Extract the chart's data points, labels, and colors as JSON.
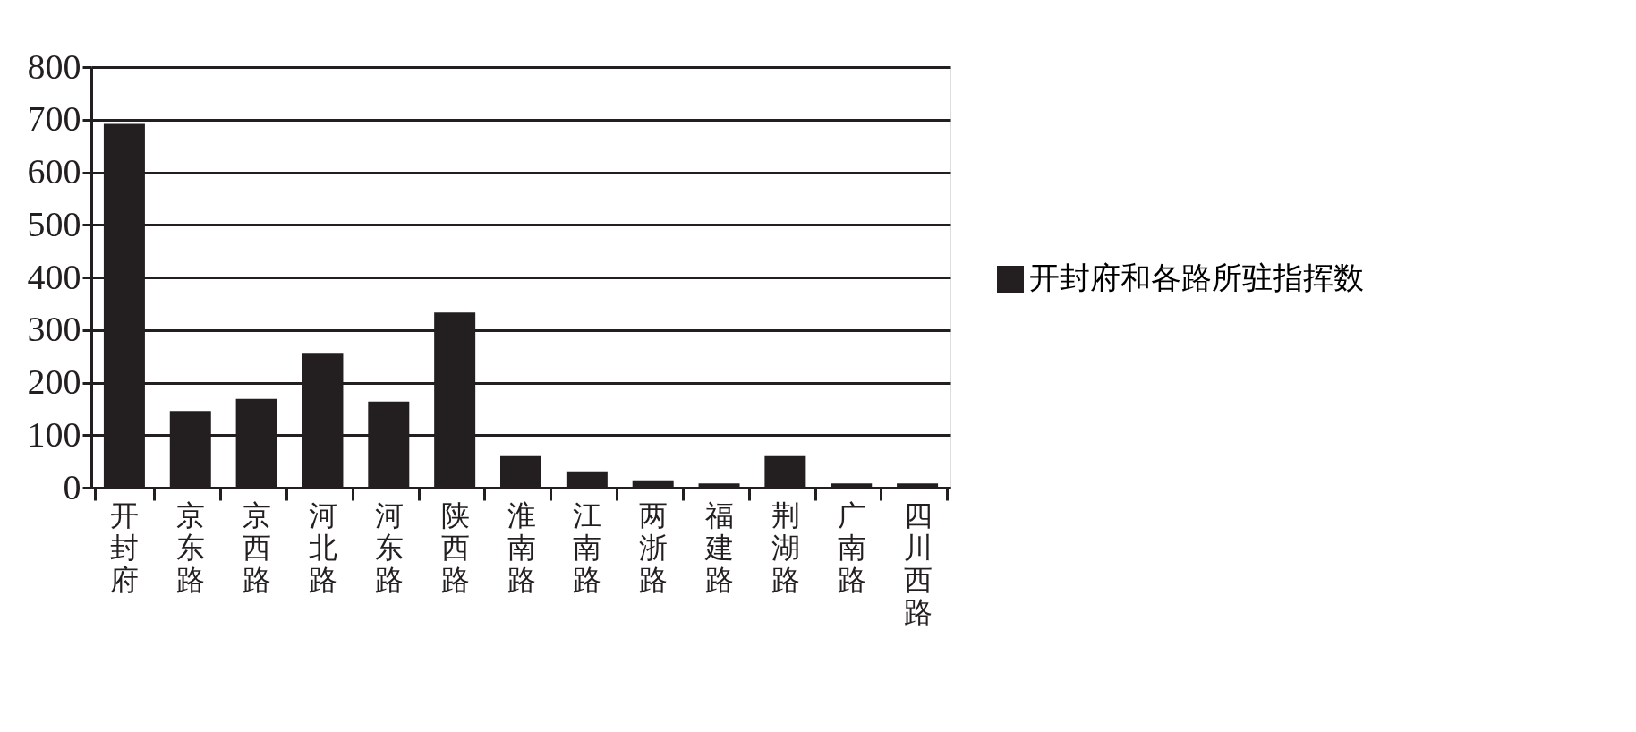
{
  "chart_data": {
    "type": "bar",
    "categories": [
      "开封府",
      "京东路",
      "京西路",
      "河北路",
      "河东路",
      "陕西路",
      "淮南路",
      "江南路",
      "两浙路",
      "福建路",
      "荆湖路",
      "广南路",
      "四川西路"
    ],
    "series": [
      {
        "name": "开封府和各路所驻指挥数",
        "color": "#231f20",
        "values": [
          692,
          146,
          169,
          255,
          164,
          333,
          60,
          31,
          14,
          8,
          60,
          8,
          8
        ]
      }
    ],
    "ylim": [
      0,
      800
    ],
    "yticks": [
      0,
      100,
      200,
      300,
      400,
      500,
      600,
      700,
      800
    ],
    "grid": "y",
    "legend": "right"
  }
}
